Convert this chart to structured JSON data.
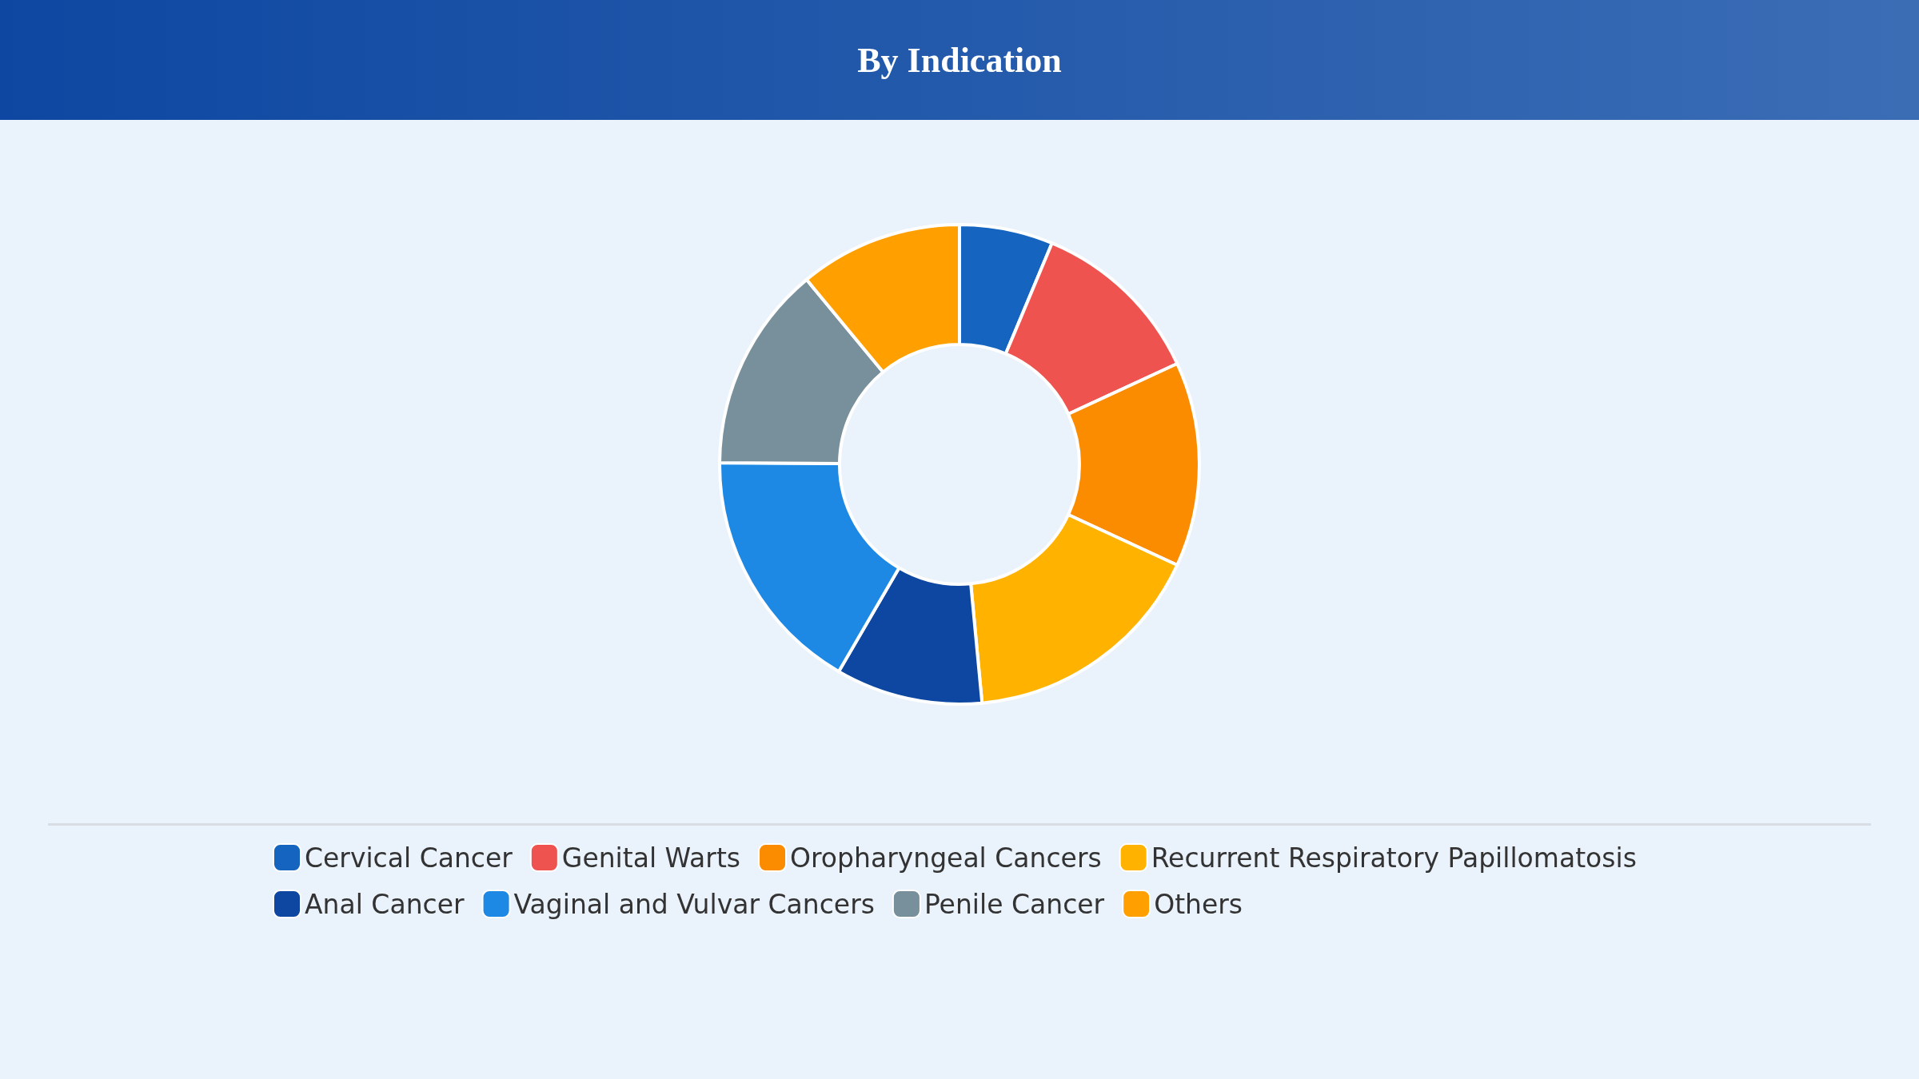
{
  "chart_data": {
    "type": "donut",
    "title": "By Indication",
    "categories": [
      "Cervical Cancer",
      "Genital Warts",
      "Oropharyngeal Cancers",
      "Recurrent Respiratory Papillomatosis",
      "Anal Cancer",
      "Vaginal and Vulvar Cancers",
      "Penile Cancer",
      "Others"
    ],
    "values": [
      6.3,
      11.8,
      13.8,
      16.6,
      9.9,
      16.7,
      13.9,
      11.0
    ],
    "colors": [
      "#1565c0",
      "#ef5350",
      "#fb8c00",
      "#ffb300",
      "#0d47a1",
      "#1e88e5",
      "#78909c",
      "#ffa000"
    ],
    "legend": "bottom"
  }
}
